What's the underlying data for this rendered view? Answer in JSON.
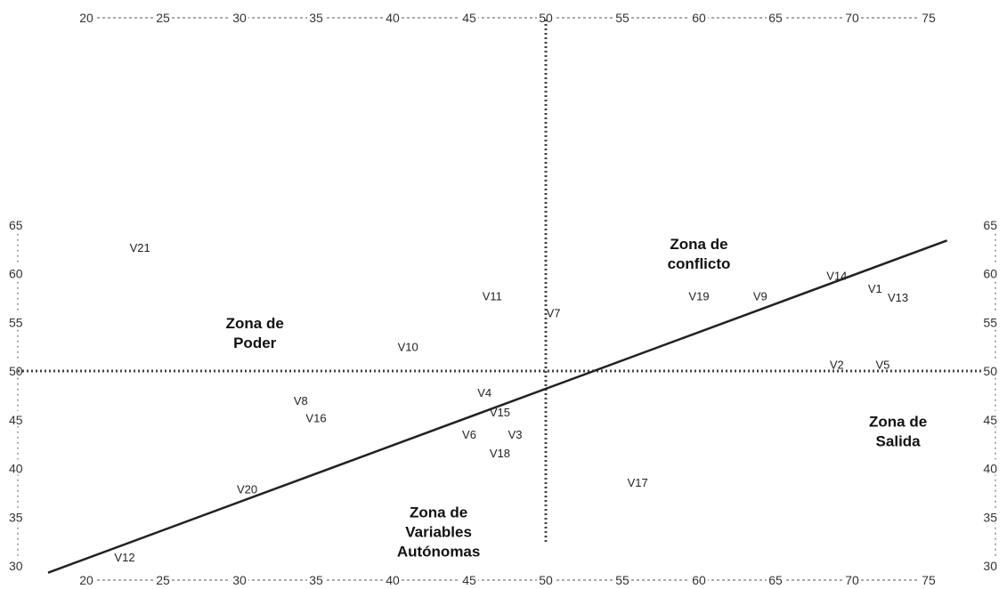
{
  "chart_data": {
    "type": "scatter",
    "title": "",
    "xlabel": "",
    "ylabel": "",
    "xlim": [
      20,
      75
    ],
    "ylim": [
      30,
      65
    ],
    "x_ticks": [
      20,
      25,
      30,
      35,
      40,
      45,
      50,
      55,
      60,
      65,
      70,
      75
    ],
    "y_ticks": [
      30,
      35,
      40,
      45,
      50,
      55,
      60,
      65
    ],
    "grid": false,
    "legend": "none",
    "dividers": {
      "x": 50,
      "y": 50
    },
    "diagonal": {
      "from": [
        17.5,
        29.3
      ],
      "to": [
        76.2,
        63.4
      ]
    },
    "points": [
      {
        "label": "V21",
        "x": 23.5,
        "y": 62.7
      },
      {
        "label": "V11",
        "x": 46.5,
        "y": 57.7
      },
      {
        "label": "V7",
        "x": 50.5,
        "y": 56.0
      },
      {
        "label": "V10",
        "x": 41.0,
        "y": 52.5
      },
      {
        "label": "V19",
        "x": 60.0,
        "y": 57.7
      },
      {
        "label": "V9",
        "x": 64.0,
        "y": 57.7
      },
      {
        "label": "V14",
        "x": 69.0,
        "y": 59.8
      },
      {
        "label": "V1",
        "x": 71.5,
        "y": 58.5
      },
      {
        "label": "V13",
        "x": 73.0,
        "y": 57.6
      },
      {
        "label": "V2",
        "x": 69.0,
        "y": 50.7
      },
      {
        "label": "V5",
        "x": 72.0,
        "y": 50.7
      },
      {
        "label": "V4",
        "x": 46.0,
        "y": 47.8
      },
      {
        "label": "V8",
        "x": 34.0,
        "y": 47.0
      },
      {
        "label": "V15",
        "x": 47.0,
        "y": 45.8
      },
      {
        "label": "V16",
        "x": 35.0,
        "y": 45.2
      },
      {
        "label": "V6",
        "x": 45.0,
        "y": 43.5
      },
      {
        "label": "V3",
        "x": 48.0,
        "y": 43.5
      },
      {
        "label": "V18",
        "x": 47.0,
        "y": 41.6
      },
      {
        "label": "V17",
        "x": 56.0,
        "y": 38.6
      },
      {
        "label": "V20",
        "x": 30.5,
        "y": 37.9
      },
      {
        "label": "V12",
        "x": 22.5,
        "y": 30.9
      }
    ],
    "annotations": [
      {
        "name": "zona-de-conflicto",
        "lines": [
          "Zona de",
          "conflicto"
        ],
        "x": 60.0,
        "y": 62.5
      },
      {
        "name": "zona-de-poder",
        "lines": [
          "Zona de",
          "Poder"
        ],
        "x": 31.0,
        "y": 54.4
      },
      {
        "name": "zona-de-salida",
        "lines": [
          "Zona de",
          "Salida"
        ],
        "x": 73.0,
        "y": 44.3
      },
      {
        "name": "zona-de-variables-autonomas",
        "lines": [
          "Zona de",
          "Variables",
          "Autónomas"
        ],
        "x": 43.0,
        "y": 35.0
      }
    ]
  }
}
